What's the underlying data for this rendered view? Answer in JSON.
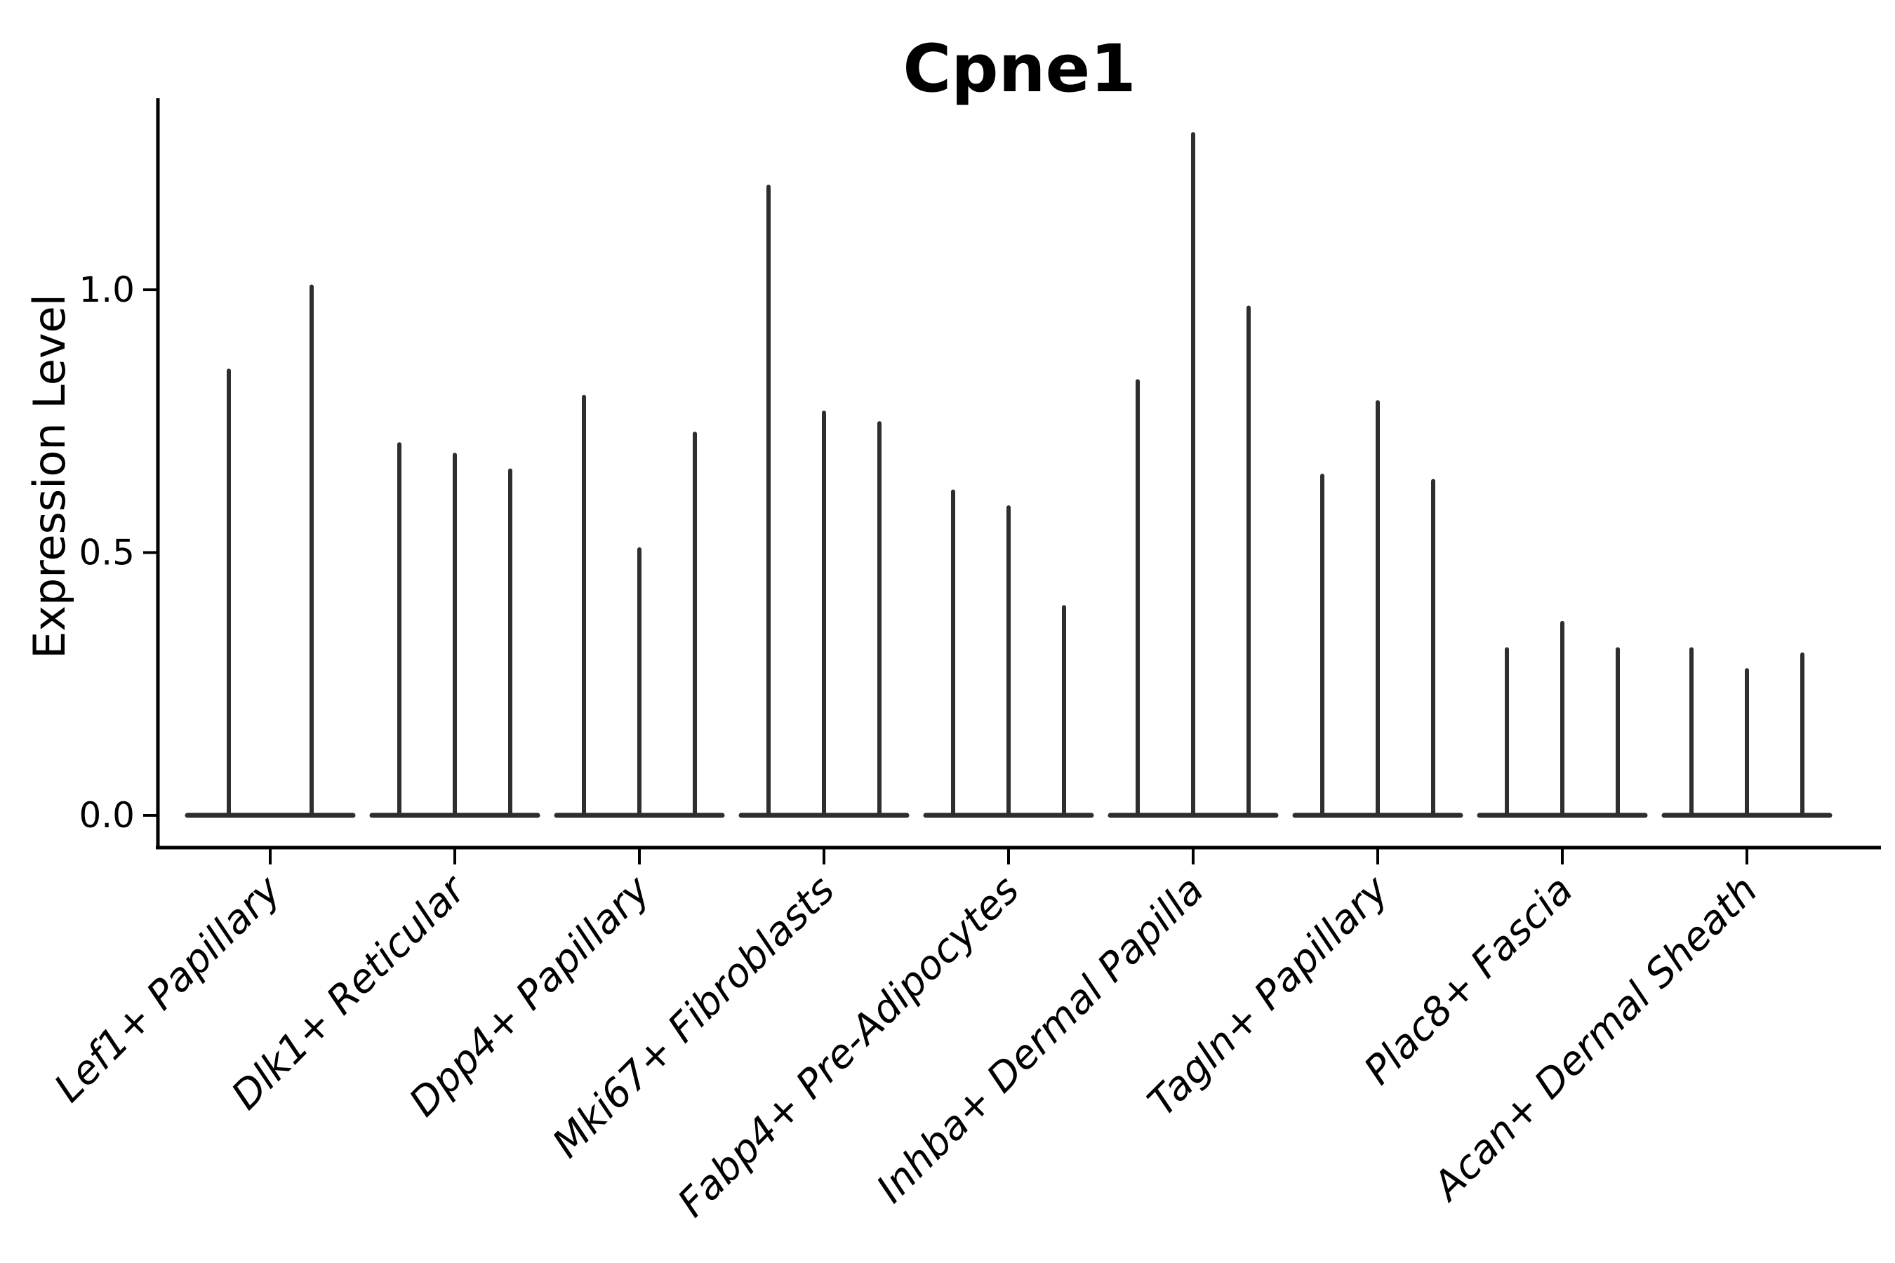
{
  "chart_data": {
    "type": "violin",
    "title": "Cpne1",
    "ylabel": "Expression Level",
    "xlabel": "",
    "ylim": [
      -0.06,
      1.36
    ],
    "yticks": [
      {
        "value": 0.0,
        "label": "0.0"
      },
      {
        "value": 0.5,
        "label": "0.5"
      },
      {
        "value": 1.0,
        "label": "1.0"
      }
    ],
    "grid": "off",
    "legend_position": "none",
    "violin_color": "#2e2e2e",
    "axis_color": "#000000",
    "background_color": "#ffffff",
    "categories": [
      "Lef1+ Papillary",
      "Dlk1+ Reticular",
      "Dpp4+ Papillary",
      "Mki67+ Fibroblasts",
      "Fabp4+ Pre-Adipocytes",
      "Inhba+ Dermal Papilla",
      "Tagln+ Papillary",
      "Plac8+ Fascia",
      "Acan+ Dermal Sheath"
    ],
    "groups": [
      {
        "category": "Lef1+ Papillary",
        "violin_max_heights": [
          0.85,
          1.01
        ]
      },
      {
        "category": "Dlk1+ Reticular",
        "violin_max_heights": [
          0.71,
          0.69,
          0.66
        ]
      },
      {
        "category": "Dpp4+ Papillary",
        "violin_max_heights": [
          0.8,
          0.51,
          0.73
        ]
      },
      {
        "category": "Mki67+ Fibroblasts",
        "violin_max_heights": [
          1.2,
          0.77,
          0.75
        ]
      },
      {
        "category": "Fabp4+ Pre-Adipocytes",
        "violin_max_heights": [
          0.62,
          0.59,
          0.4
        ]
      },
      {
        "category": "Inhba+ Dermal Papilla",
        "violin_max_heights": [
          0.83,
          1.3,
          0.97
        ]
      },
      {
        "category": "Tagln+ Papillary",
        "violin_max_heights": [
          0.65,
          0.79,
          0.64
        ]
      },
      {
        "category": "Plac8+ Fascia",
        "violin_max_heights": [
          0.32,
          0.37,
          0.32
        ]
      },
      {
        "category": "Acan+ Dermal Sheath",
        "violin_max_heights": [
          0.32,
          0.28,
          0.31
        ]
      }
    ],
    "note": "Violin plot; each violin is a wide flat base at expression 0 with a thin density spike rising to the listed maximum expression value."
  }
}
